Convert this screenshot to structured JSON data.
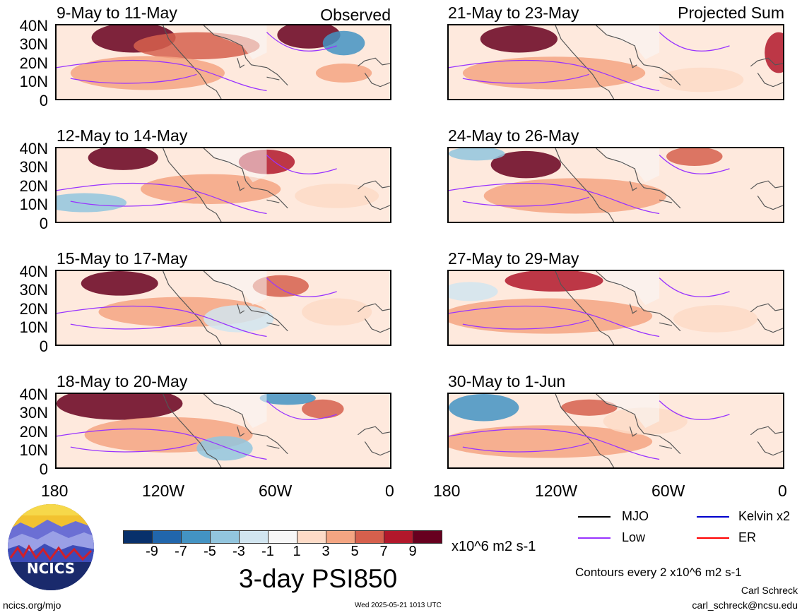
{
  "panels_left": [
    {
      "title": "9-May to 11-May",
      "tag": "Observed"
    },
    {
      "title": "12-May to 14-May",
      "tag": ""
    },
    {
      "title": "15-May to 17-May",
      "tag": ""
    },
    {
      "title": "18-May to 20-May",
      "tag": ""
    }
  ],
  "panels_right": [
    {
      "title": "21-May to 23-May",
      "tag": "Projected Sum"
    },
    {
      "title": "24-May to 26-May",
      "tag": ""
    },
    {
      "title": "27-May to 29-May",
      "tag": ""
    },
    {
      "title": "30-May to 1-Jun",
      "tag": ""
    }
  ],
  "lat_labels": [
    "40N",
    "30N",
    "20N",
    "10N",
    "0"
  ],
  "lon_labels": [
    "180",
    "120W",
    "60W",
    "0"
  ],
  "colorbar": {
    "colors": [
      "#08306b",
      "#2166ac",
      "#4393c3",
      "#92c5de",
      "#d1e5f0",
      "#f7f7f7",
      "#fddbc7",
      "#f4a582",
      "#d6604d",
      "#b2182b",
      "#67001f"
    ],
    "labels": [
      "-9",
      "-7",
      "-5",
      "-3",
      "-1",
      "1",
      "3",
      "5",
      "7",
      "9"
    ],
    "units": "x10^6 m2 s-1"
  },
  "main_title": "3-day PSI850",
  "legend": {
    "items": [
      {
        "label": "MJO",
        "color": "#000000"
      },
      {
        "label": "Kelvin x2",
        "color": "#0000cc"
      },
      {
        "label": "Low",
        "color": "#9933ff"
      },
      {
        "label": "ER",
        "color": "#ff0000"
      }
    ],
    "contour_note": "Contours every 2 x10^6 m2 s-1"
  },
  "logo": {
    "text": "NCICS"
  },
  "footer": {
    "url": "ncics.org/mjo",
    "timestamp": "Wed 2025-05-21 1013 UTC",
    "author": "Carl Schreck",
    "email": "carl_schreck@ncsu.edu"
  }
}
